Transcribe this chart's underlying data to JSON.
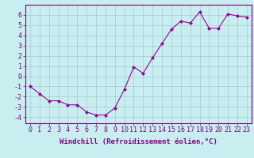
{
  "x": [
    0,
    1,
    2,
    3,
    4,
    5,
    6,
    7,
    8,
    9,
    10,
    11,
    12,
    13,
    14,
    15,
    16,
    17,
    18,
    19,
    20,
    21,
    22,
    23
  ],
  "y": [
    -1.0,
    -1.7,
    -2.4,
    -2.4,
    -2.8,
    -2.8,
    -3.5,
    -3.8,
    -3.8,
    -3.1,
    -1.3,
    0.9,
    0.3,
    1.8,
    3.2,
    4.6,
    5.4,
    5.2,
    6.3,
    4.7,
    4.7,
    6.1,
    5.9,
    5.8
  ],
  "line_color": "#990099",
  "marker": "D",
  "marker_size": 2.0,
  "bg_color": "#c8eef0",
  "grid_color": "#a0ccd0",
  "xlabel": "Windchill (Refroidissement éolien,°C)",
  "xlabel_fontsize": 6.5,
  "xtick_labels": [
    "0",
    "1",
    "2",
    "3",
    "4",
    "5",
    "6",
    "7",
    "8",
    "9",
    "10",
    "11",
    "12",
    "13",
    "14",
    "15",
    "16",
    "17",
    "18",
    "19",
    "20",
    "21",
    "22",
    "23"
  ],
  "ylim": [
    -4.6,
    7.0
  ],
  "xlim": [
    -0.5,
    23.5
  ],
  "tick_fontsize": 6.0,
  "line_width": 0.8,
  "spine_color": "#800080",
  "tick_color": "#800080"
}
